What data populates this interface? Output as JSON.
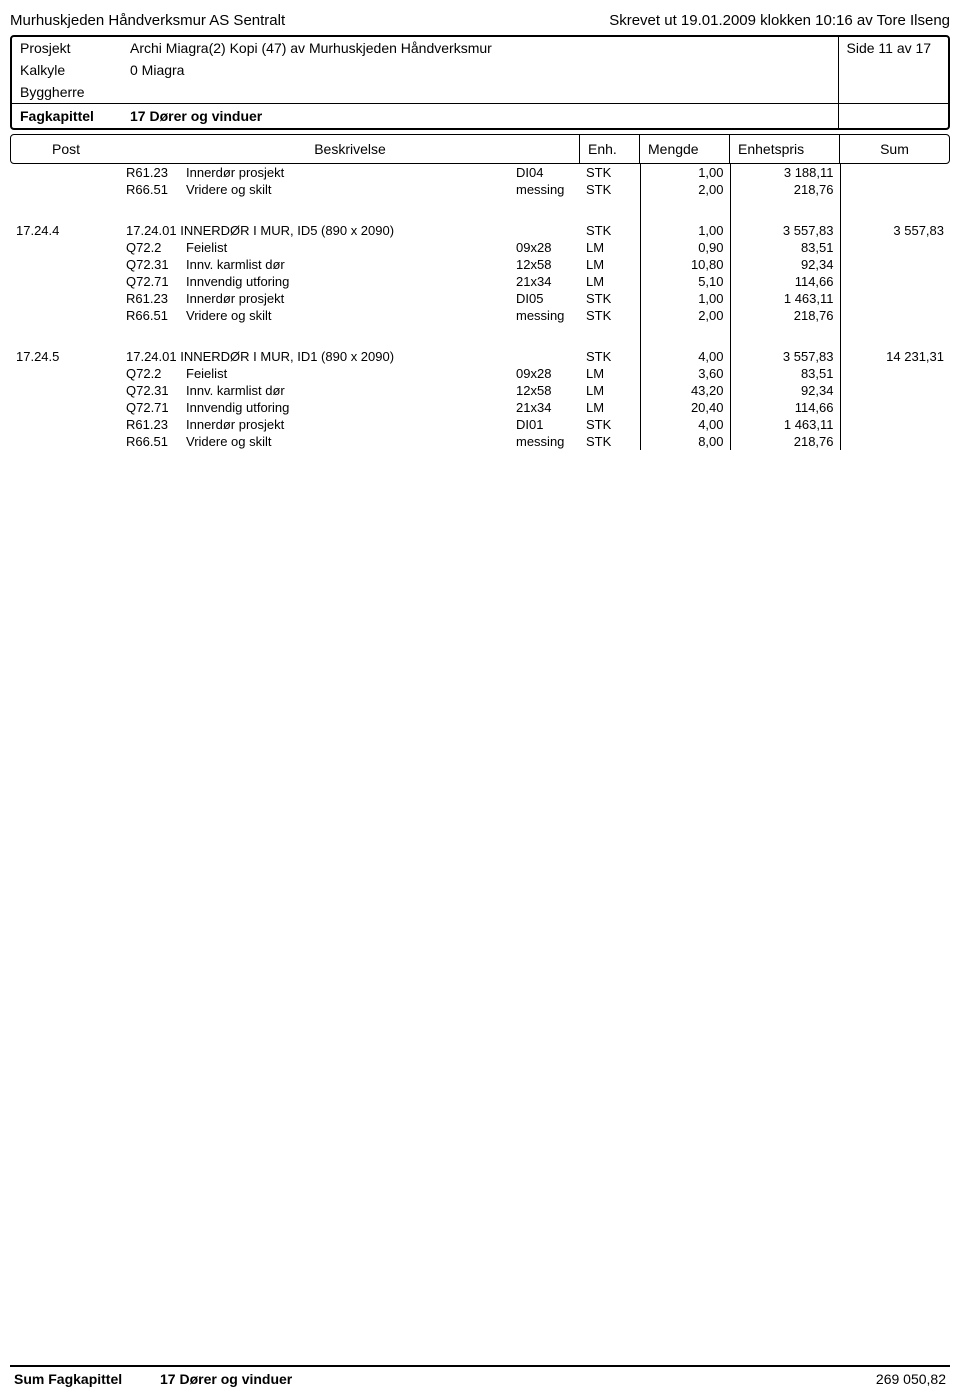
{
  "header": {
    "left": "Murhuskjeden Håndverksmur AS Sentralt",
    "right": "Skrevet ut 19.01.2009 klokken 10:16 av Tore Ilseng"
  },
  "meta": {
    "prosjekt_label": "Prosjekt",
    "prosjekt_value": "Archi Miagra(2) Kopi (47) av Murhuskjeden Håndverksmur",
    "kalkyle_label": "Kalkyle",
    "kalkyle_value": "0 Miagra",
    "side": "Side 11 av 17",
    "byggherre_label": "Byggherre",
    "fagkapittel_label": "Fagkapittel",
    "fagkapittel_value": "17 Dører og vinduer"
  },
  "columns": {
    "post": "Post",
    "beskrivelse": "Beskrivelse",
    "enh": "Enh.",
    "mengde": "Mengde",
    "enhetspris": "Enhetspris",
    "sum": "Sum"
  },
  "block0": [
    {
      "code": "R61.23",
      "desc": "Innerdør prosjekt",
      "dim": "DI04",
      "enh": "STK",
      "mengde": "1,00",
      "pris": "3 188,11"
    },
    {
      "code": "R66.51",
      "desc": "Vridere og skilt",
      "dim": "messing",
      "enh": "STK",
      "mengde": "2,00",
      "pris": "218,76"
    }
  ],
  "block1": {
    "post": "17.24.4",
    "title": "17.24.01 INNERDØR I MUR, ID5 (890 x 2090)",
    "enh": "STK",
    "mengde": "1,00",
    "pris": "3 557,83",
    "sum": "3 557,83",
    "rows": [
      {
        "code": "Q72.2",
        "desc": "Feielist",
        "dim": "09x28",
        "enh": "LM",
        "mengde": "0,90",
        "pris": "83,51"
      },
      {
        "code": "Q72.31",
        "desc": "Innv. karmlist dør",
        "dim": "12x58",
        "enh": "LM",
        "mengde": "10,80",
        "pris": "92,34"
      },
      {
        "code": "Q72.71",
        "desc": "Innvendig utforing",
        "dim": "21x34",
        "enh": "LM",
        "mengde": "5,10",
        "pris": "114,66"
      },
      {
        "code": "R61.23",
        "desc": "Innerdør prosjekt",
        "dim": "DI05",
        "enh": "STK",
        "mengde": "1,00",
        "pris": "1 463,11"
      },
      {
        "code": "R66.51",
        "desc": "Vridere og skilt",
        "dim": "messing",
        "enh": "STK",
        "mengde": "2,00",
        "pris": "218,76"
      }
    ]
  },
  "block2": {
    "post": "17.24.5",
    "title": "17.24.01 INNERDØR I MUR, ID1 (890 x 2090)",
    "enh": "STK",
    "mengde": "4,00",
    "pris": "3 557,83",
    "sum": "14 231,31",
    "rows": [
      {
        "code": "Q72.2",
        "desc": "Feielist",
        "dim": "09x28",
        "enh": "LM",
        "mengde": "3,60",
        "pris": "83,51"
      },
      {
        "code": "Q72.31",
        "desc": "Innv. karmlist dør",
        "dim": "12x58",
        "enh": "LM",
        "mengde": "43,20",
        "pris": "92,34"
      },
      {
        "code": "Q72.71",
        "desc": "Innvendig utforing",
        "dim": "21x34",
        "enh": "LM",
        "mengde": "20,40",
        "pris": "114,66"
      },
      {
        "code": "R61.23",
        "desc": "Innerdør prosjekt",
        "dim": "DI01",
        "enh": "STK",
        "mengde": "4,00",
        "pris": "1 463,11"
      },
      {
        "code": "R66.51",
        "desc": "Vridere og skilt",
        "dim": "messing",
        "enh": "STK",
        "mengde": "8,00",
        "pris": "218,76"
      }
    ]
  },
  "footer": {
    "label": "Sum Fagkapittel",
    "value": "17 Dører og vinduer",
    "sum": "269 050,82"
  }
}
